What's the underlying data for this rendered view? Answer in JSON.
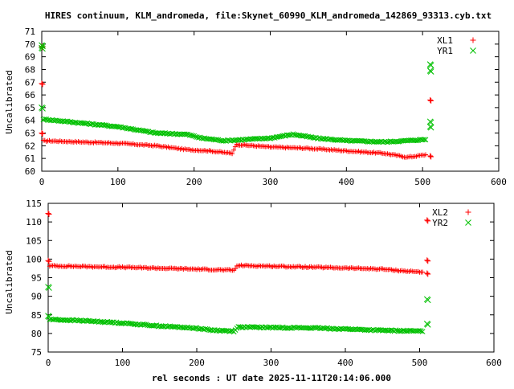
{
  "title": "HIRES continuum, KLM_andromeda, file:Skynet_60990_KLM_andromeda_142869_93313.cyb.txt",
  "xlabel": "rel seconds : UT date 2025-11-11T20:14:06.000",
  "colors": {
    "red": "#ff0000",
    "green": "#00c000",
    "axis": "#000000"
  },
  "chart_data": [
    {
      "type": "scatter",
      "title": "",
      "xlabel": "",
      "ylabel": "Uncalibrated",
      "xlim": [
        0,
        600
      ],
      "ylim": [
        60,
        71
      ],
      "xticks": [
        0,
        100,
        200,
        300,
        400,
        500,
        600
      ],
      "yticks": [
        60,
        61,
        62,
        63,
        64,
        65,
        66,
        67,
        68,
        69,
        70,
        71
      ],
      "legend_position": "top-right",
      "series": [
        {
          "name": "XL1",
          "marker": "plus",
          "color": "#ff0000",
          "trend": [
            [
              0,
              62.4
            ],
            [
              50,
              62.3
            ],
            [
              100,
              62.2
            ],
            [
              150,
              62.0
            ],
            [
              190,
              61.7
            ],
            [
              220,
              61.6
            ],
            [
              250,
              61.4
            ],
            [
              255,
              62.1
            ],
            [
              300,
              61.9
            ],
            [
              350,
              61.8
            ],
            [
              400,
              61.6
            ],
            [
              450,
              61.4
            ],
            [
              480,
              61.1
            ],
            [
              505,
              61.3
            ]
          ],
          "outliers": [
            [
              0,
              66.9
            ],
            [
              0,
              63.0
            ],
            [
              0,
              69.8
            ],
            [
              510,
              65.6
            ],
            [
              510,
              61.2
            ]
          ]
        },
        {
          "name": "YR1",
          "marker": "cross",
          "color": "#00c000",
          "trend": [
            [
              0,
              64.1
            ],
            [
              50,
              63.8
            ],
            [
              100,
              63.5
            ],
            [
              150,
              63.0
            ],
            [
              190,
              62.9
            ],
            [
              210,
              62.6
            ],
            [
              240,
              62.4
            ],
            [
              300,
              62.6
            ],
            [
              330,
              62.9
            ],
            [
              360,
              62.6
            ],
            [
              400,
              62.4
            ],
            [
              450,
              62.3
            ],
            [
              480,
              62.4
            ],
            [
              505,
              62.5
            ]
          ],
          "outliers": [
            [
              0,
              69.9
            ],
            [
              0,
              69.7
            ],
            [
              0,
              65.0
            ],
            [
              510,
              68.4
            ],
            [
              510,
              67.9
            ],
            [
              510,
              63.9
            ],
            [
              510,
              63.5
            ]
          ]
        }
      ]
    },
    {
      "type": "scatter",
      "title": "",
      "xlabel": "rel seconds : UT date 2025-11-11T20:14:06.000",
      "ylabel": "Uncalibrated",
      "xlim": [
        0,
        600
      ],
      "ylim": [
        75,
        115
      ],
      "xticks": [
        0,
        100,
        200,
        300,
        400,
        500,
        600
      ],
      "yticks": [
        75,
        80,
        85,
        90,
        95,
        100,
        105,
        110,
        115
      ],
      "legend_position": "top-right",
      "series": [
        {
          "name": "XL2",
          "marker": "plus",
          "color": "#ff0000",
          "trend": [
            [
              0,
              98.2
            ],
            [
              100,
              97.8
            ],
            [
              200,
              97.3
            ],
            [
              250,
              97.0
            ],
            [
              255,
              98.3
            ],
            [
              300,
              98.1
            ],
            [
              400,
              97.6
            ],
            [
              450,
              97.3
            ],
            [
              480,
              96.8
            ],
            [
              505,
              96.5
            ]
          ],
          "outliers": [
            [
              0,
              112.3
            ],
            [
              0,
              99.6
            ],
            [
              510,
              99.7
            ],
            [
              510,
              110.5
            ],
            [
              510,
              96.2
            ]
          ]
        },
        {
          "name": "YR2",
          "marker": "cross",
          "color": "#00c000",
          "trend": [
            [
              0,
              83.8
            ],
            [
              50,
              83.4
            ],
            [
              100,
              82.8
            ],
            [
              150,
              82.0
            ],
            [
              200,
              81.4
            ],
            [
              220,
              80.9
            ],
            [
              250,
              80.6
            ],
            [
              255,
              81.7
            ],
            [
              300,
              81.6
            ],
            [
              350,
              81.5
            ],
            [
              400,
              81.2
            ],
            [
              450,
              80.8
            ],
            [
              505,
              80.6
            ]
          ],
          "outliers": [
            [
              0,
              92.5
            ],
            [
              0,
              84.7
            ],
            [
              510,
              89.2
            ],
            [
              510,
              82.6
            ]
          ]
        }
      ]
    }
  ]
}
